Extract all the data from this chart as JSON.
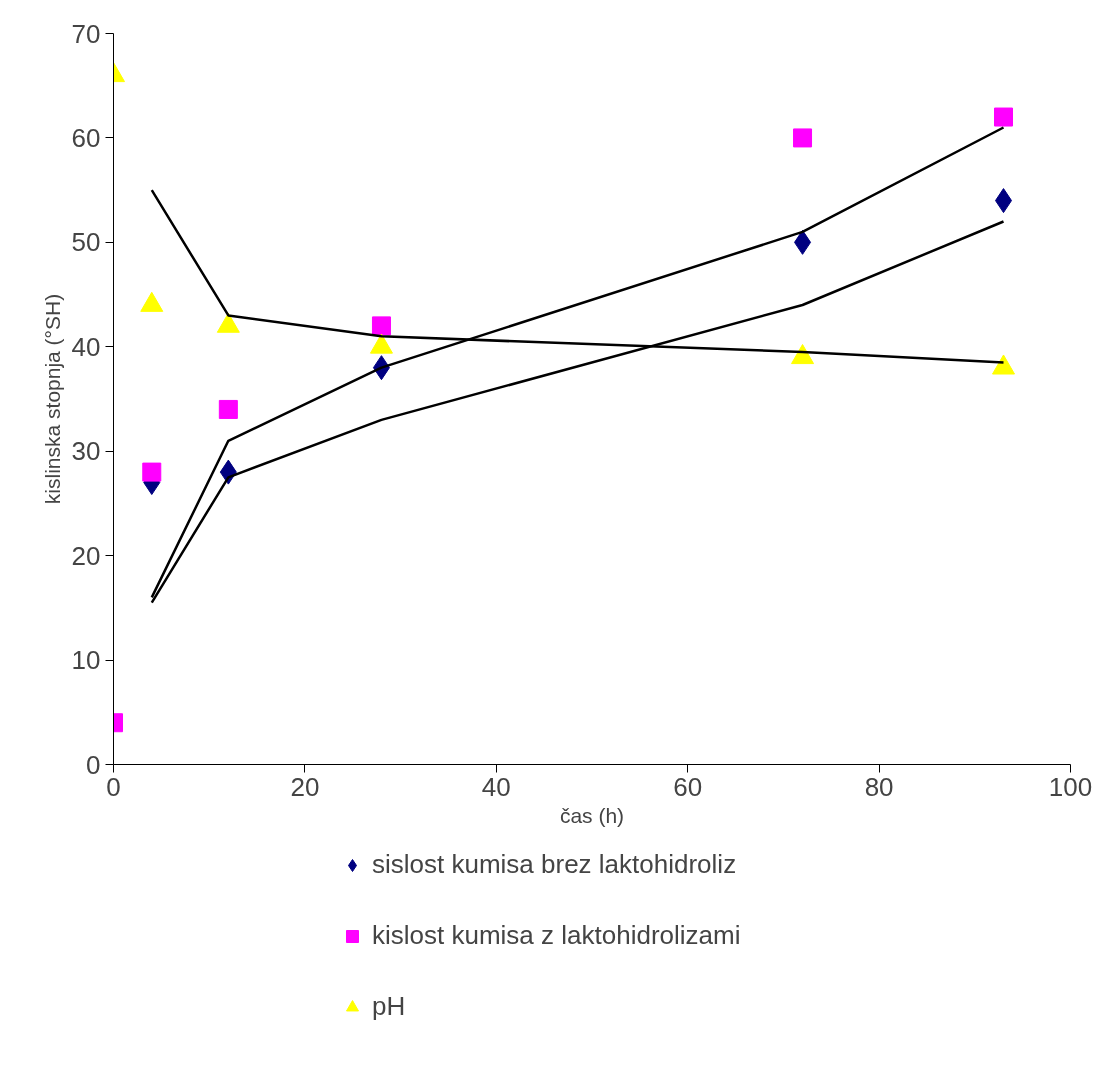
{
  "chart_data": {
    "type": "scatter",
    "xlabel": "čas (h)",
    "ylabel": "kislinska stopnja (°SH)",
    "x": [
      0,
      4,
      12,
      28,
      72,
      93
    ],
    "series": [
      {
        "name": "sislost kumisa brez laktohidroliz",
        "color": "#000080",
        "marker": "diamond",
        "values": [
          null,
          27,
          28,
          38,
          50,
          54
        ]
      },
      {
        "name": "kislost kumisa z laktohidrolizami",
        "color": "#ff00ff",
        "marker": "square",
        "values": [
          4,
          28,
          34,
          42,
          60,
          62
        ]
      },
      {
        "name": "pH",
        "color": "#ffff00",
        "marker": "triangle",
        "values": [
          66,
          44,
          42,
          40,
          39,
          38
        ]
      },
      {
        "type": "line",
        "color": "#000000",
        "x": [
          4,
          12,
          28,
          72,
          93
        ],
        "values": [
          15.5,
          27.5,
          33,
          44,
          52
        ]
      },
      {
        "type": "line",
        "color": "#000000",
        "x": [
          4,
          12,
          28,
          72,
          93
        ],
        "values": [
          16,
          31,
          38,
          51,
          61
        ]
      },
      {
        "type": "line",
        "color": "#000000",
        "x": [
          4,
          12,
          28,
          72,
          93
        ],
        "values": [
          55,
          43,
          41,
          39.5,
          38.5
        ]
      }
    ],
    "xlim": [
      0,
      100
    ],
    "xticks": [
      0,
      20,
      40,
      60,
      80,
      100
    ],
    "ylim": [
      0,
      70
    ],
    "yticks": [
      0,
      10,
      20,
      30,
      40,
      50,
      60,
      70
    ],
    "grid": false,
    "legend": "bottom"
  }
}
